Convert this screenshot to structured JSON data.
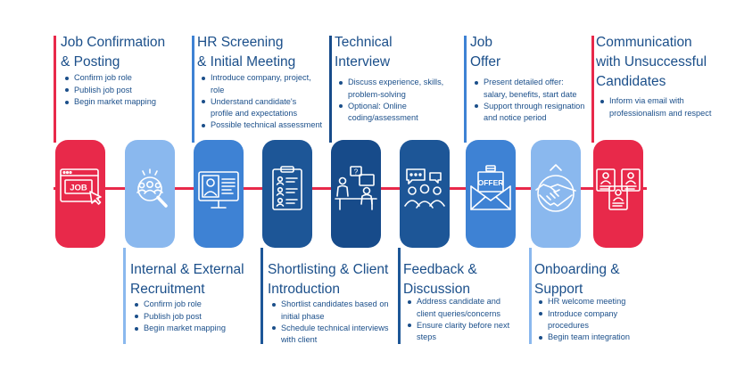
{
  "colors": {
    "accent_red": "#e8294a",
    "text_blue": "#1b4f8a",
    "card_light": "#8ab8ee",
    "card_mid": "#3e82d4",
    "card_dark": "#1d5697",
    "card_deep": "#174b8a"
  },
  "steps": [
    {
      "title1": "Job Confirmation",
      "title2": "& Posting",
      "bullets": [
        "Confirm job role",
        "Publish job post",
        "Begin market mapping"
      ],
      "icon": "job-posting-icon"
    },
    {
      "title1": "Internal & External",
      "title2": "Recruitment",
      "bullets": [
        "Confirm job role",
        "Publish job post",
        "Begin market mapping"
      ],
      "icon": "people-search-icon"
    },
    {
      "title1": "HR Screening",
      "title2": "& Initial Meeting",
      "bullets": [
        "Introduce company, project,",
        "role",
        "Understand candidate's",
        "profile and expectations",
        "Possible technical assessment"
      ],
      "icon": "video-meeting-icon"
    },
    {
      "title1": "Shortlisting & Client",
      "title2": "Introduction",
      "bullets": [
        "Shortlist candidates based on",
        "initial phase",
        "Schedule technical interviews",
        "with client"
      ],
      "icon": "shortlist-clipboard-icon"
    },
    {
      "title1": "Technical",
      "title2": "Interview",
      "bullets": [
        "Discuss experience, skills,",
        "problem-solving",
        "Optional: Online",
        "coding/assessment"
      ],
      "icon": "interview-icon"
    },
    {
      "title1": "Feedback &",
      "title2": "Discussion",
      "bullets": [
        "Address candidate and",
        "client queries/concerns",
        "Ensure clarity before next",
        "steps"
      ],
      "icon": "group-discussion-icon"
    },
    {
      "title1": "Job",
      "title2": "Offer",
      "bullets": [
        "Present detailed offer:",
        "salary, benefits, start date",
        "Support through resignation",
        "and notice period"
      ],
      "icon": "offer-envelope-icon",
      "icon_text": "OFFER"
    },
    {
      "title1": "Onboarding &",
      "title2": "Support",
      "bullets": [
        "HR welcome meeting",
        "Introduce company",
        "procedures",
        "Begin team integration"
      ],
      "icon": "handshake-icon"
    },
    {
      "title1": "Communication",
      "title2": "with Unsuccessful",
      "title3": "Candidates",
      "bullets": [
        "Inform via email with",
        "professionalism and respect"
      ],
      "icon": "candidate-cards-icon"
    }
  ],
  "job_icon_text": "JOB"
}
